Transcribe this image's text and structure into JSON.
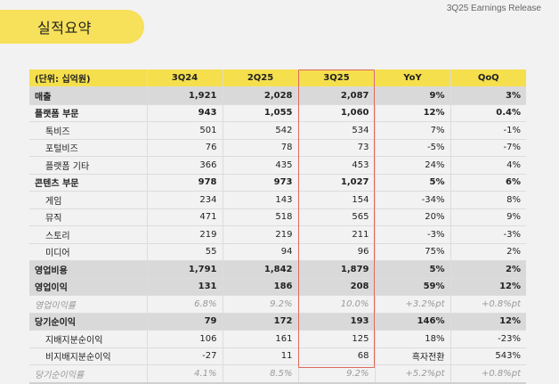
{
  "header": {
    "title": "실적요약",
    "release_label": "3Q25 Earnings Release"
  },
  "table": {
    "columns": [
      "(단위: 십억원)",
      "3Q24",
      "2Q25",
      "3Q25",
      "YoY",
      "QoQ"
    ],
    "highlight_column": "3Q25",
    "colors": {
      "header_bg": "#f5df4d",
      "title_bg": "#f7e05a",
      "major_row_bg": "#d9d9d9",
      "highlight_border": "#e0685a"
    },
    "rows": [
      {
        "type": "major",
        "cells": [
          "매출",
          "1,921",
          "2,028",
          "2,087",
          "9%",
          "3%"
        ]
      },
      {
        "type": "seg",
        "cells": [
          "플랫폼 부문",
          "943",
          "1,055",
          "1,060",
          "12%",
          "0.4%"
        ]
      },
      {
        "type": "sub",
        "cells": [
          "톡비즈",
          "501",
          "542",
          "534",
          "7%",
          "-1%"
        ]
      },
      {
        "type": "sub",
        "cells": [
          "포털비즈",
          "76",
          "78",
          "73",
          "-5%",
          "-7%"
        ]
      },
      {
        "type": "sub",
        "cells": [
          "플랫폼 기타",
          "366",
          "435",
          "453",
          "24%",
          "4%"
        ]
      },
      {
        "type": "seg",
        "cells": [
          "콘텐츠 부문",
          "978",
          "973",
          "1,027",
          "5%",
          "6%"
        ]
      },
      {
        "type": "sub",
        "cells": [
          "게임",
          "234",
          "143",
          "154",
          "-34%",
          "8%"
        ]
      },
      {
        "type": "sub",
        "cells": [
          "뮤직",
          "471",
          "518",
          "565",
          "20%",
          "9%"
        ]
      },
      {
        "type": "sub",
        "cells": [
          "스토리",
          "219",
          "219",
          "211",
          "-3%",
          "-3%"
        ]
      },
      {
        "type": "sub",
        "cells": [
          "미디어",
          "55",
          "94",
          "96",
          "75%",
          "2%"
        ]
      },
      {
        "type": "major",
        "cells": [
          "영업비용",
          "1,791",
          "1,842",
          "1,879",
          "5%",
          "2%"
        ]
      },
      {
        "type": "major",
        "cells": [
          "영업이익",
          "131",
          "186",
          "208",
          "59%",
          "12%"
        ]
      },
      {
        "type": "ratio",
        "cells": [
          "영업이익률",
          "6.8%",
          "9.2%",
          "10.0%",
          "+3.2%pt",
          "+0.8%pt"
        ]
      },
      {
        "type": "major",
        "cells": [
          "당기순이익",
          "79",
          "172",
          "193",
          "146%",
          "12%"
        ]
      },
      {
        "type": "sub",
        "cells": [
          "지배지분순이익",
          "106",
          "161",
          "125",
          "18%",
          "-23%"
        ]
      },
      {
        "type": "sub",
        "cells": [
          "비지배지분순이익",
          "-27",
          "11",
          "68",
          "흑자전환",
          "543%"
        ]
      },
      {
        "type": "ratio",
        "cells": [
          "당기순이익률",
          "4.1%",
          "8.5%",
          "9.2%",
          "+5.2%pt",
          "+0.8%pt"
        ]
      }
    ]
  }
}
